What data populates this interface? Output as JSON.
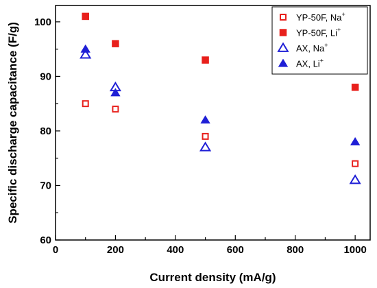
{
  "chart_data": {
    "type": "scatter",
    "xlabel": "Current density (mA/g)",
    "ylabel": "Specific discharge capacitance (F/g)",
    "xlim": [
      0,
      1050
    ],
    "ylim": [
      60,
      103
    ],
    "xticks": [
      0,
      200,
      400,
      600,
      800,
      1000
    ],
    "yticks": [
      60,
      70,
      80,
      90,
      100
    ],
    "x_minor_step": 100,
    "y_minor_step": 5,
    "legend_position": "top-right",
    "series": [
      {
        "name": "YP-50F, Na",
        "sup": "+",
        "color": "#e8201c",
        "marker": "square",
        "filled": false,
        "points": [
          {
            "x": 100,
            "y": 85
          },
          {
            "x": 200,
            "y": 84
          },
          {
            "x": 500,
            "y": 79
          },
          {
            "x": 1000,
            "y": 74
          }
        ]
      },
      {
        "name": "YP-50F, Li",
        "sup": "+",
        "color": "#e8201c",
        "marker": "square",
        "filled": true,
        "points": [
          {
            "x": 100,
            "y": 101
          },
          {
            "x": 200,
            "y": 96
          },
          {
            "x": 500,
            "y": 93
          },
          {
            "x": 1000,
            "y": 88
          }
        ]
      },
      {
        "name": "AX, Na",
        "sup": "+",
        "color": "#1f1fd6",
        "marker": "triangle",
        "filled": false,
        "points": [
          {
            "x": 100,
            "y": 94
          },
          {
            "x": 200,
            "y": 88
          },
          {
            "x": 500,
            "y": 77
          },
          {
            "x": 1000,
            "y": 71
          }
        ]
      },
      {
        "name": "AX, Li",
        "sup": "+",
        "color": "#1f1fd6",
        "marker": "triangle",
        "filled": true,
        "points": [
          {
            "x": 100,
            "y": 95
          },
          {
            "x": 200,
            "y": 87
          },
          {
            "x": 500,
            "y": 82
          },
          {
            "x": 1000,
            "y": 78
          }
        ]
      }
    ]
  }
}
